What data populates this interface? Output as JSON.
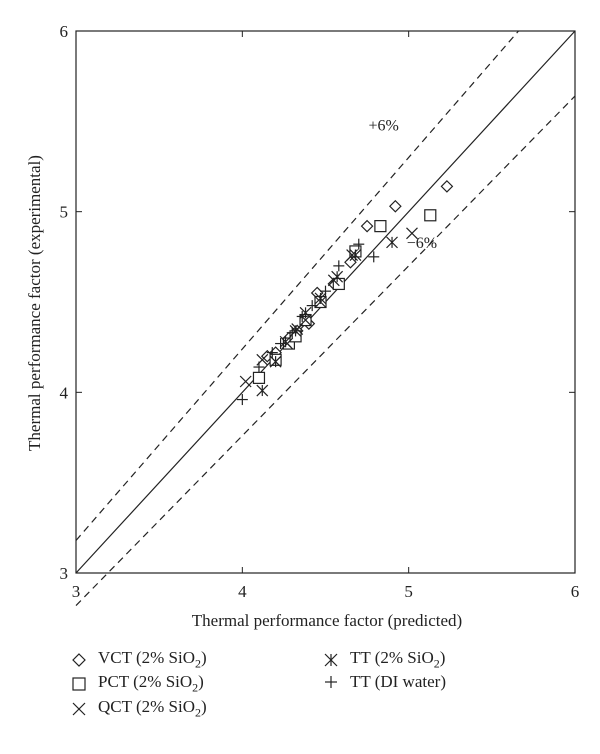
{
  "chart_data": {
    "type": "scatter",
    "xlabel": "Thermal performance factor (predicted)",
    "ylabel": "Thermal performance factor (experimental)",
    "xlim": [
      3,
      6
    ],
    "ylim": [
      3,
      6
    ],
    "x_ticks": [
      "3",
      "4",
      "5",
      "6"
    ],
    "y_ticks": [
      "3",
      "4",
      "5",
      "6"
    ],
    "grid": false,
    "reference_lines": [
      {
        "label": "",
        "slope": 1.0,
        "style": "solid"
      },
      {
        "label": "+6%",
        "slope": 1.06,
        "style": "dashed"
      },
      {
        "label": "−6%",
        "slope": 0.94,
        "style": "dashed"
      }
    ],
    "annotations": [
      {
        "text": "+6%",
        "x": 4.85,
        "y": 5.45
      },
      {
        "text": "−6%",
        "x": 5.08,
        "y": 4.8
      }
    ],
    "legend_position": "bottom",
    "series": [
      {
        "name": "VCT (2% SiO",
        "sub": "2",
        "tail": ")",
        "marker": "diamond",
        "points": [
          [
            4.15,
            4.2
          ],
          [
            4.2,
            4.22
          ],
          [
            4.28,
            4.3
          ],
          [
            4.33,
            4.34
          ],
          [
            4.4,
            4.38
          ],
          [
            4.45,
            4.55
          ],
          [
            4.55,
            4.6
          ],
          [
            4.65,
            4.72
          ],
          [
            4.75,
            4.92
          ],
          [
            4.92,
            5.03
          ],
          [
            5.23,
            5.14
          ]
        ]
      },
      {
        "name": "PCT (2% SiO",
        "sub": "2",
        "tail": ")",
        "marker": "square",
        "points": [
          [
            4.1,
            4.08
          ],
          [
            4.2,
            4.18
          ],
          [
            4.28,
            4.27
          ],
          [
            4.32,
            4.31
          ],
          [
            4.38,
            4.4
          ],
          [
            4.47,
            4.5
          ],
          [
            4.58,
            4.6
          ],
          [
            4.68,
            4.78
          ],
          [
            4.83,
            4.92
          ],
          [
            5.13,
            4.98
          ]
        ]
      },
      {
        "name": "QCT (2% SiO",
        "sub": "2",
        "tail": ")",
        "marker": "x",
        "points": [
          [
            4.02,
            4.06
          ],
          [
            4.12,
            4.18
          ],
          [
            4.2,
            4.17
          ],
          [
            4.27,
            4.27
          ],
          [
            4.33,
            4.35
          ],
          [
            4.38,
            4.4
          ],
          [
            4.47,
            4.5
          ],
          [
            4.55,
            4.62
          ],
          [
            4.66,
            4.76
          ],
          [
            5.02,
            4.88
          ]
        ]
      },
      {
        "name": "TT (2% SiO",
        "sub": "2",
        "tail": ")",
        "marker": "asterisk",
        "points": [
          [
            4.12,
            4.01
          ],
          [
            4.2,
            4.17
          ],
          [
            4.26,
            4.28
          ],
          [
            4.32,
            4.34
          ],
          [
            4.38,
            4.44
          ],
          [
            4.47,
            4.52
          ],
          [
            4.57,
            4.64
          ],
          [
            4.68,
            4.76
          ],
          [
            4.9,
            4.83
          ]
        ]
      },
      {
        "name": "TT (DI water)",
        "sub": "",
        "tail": "",
        "marker": "plus",
        "points": [
          [
            4.0,
            3.96
          ],
          [
            4.1,
            4.14
          ],
          [
            4.18,
            4.22
          ],
          [
            4.23,
            4.27
          ],
          [
            4.3,
            4.33
          ],
          [
            4.36,
            4.42
          ],
          [
            4.42,
            4.48
          ],
          [
            4.5,
            4.56
          ],
          [
            4.58,
            4.7
          ],
          [
            4.7,
            4.82
          ],
          [
            4.79,
            4.75
          ]
        ]
      }
    ]
  }
}
